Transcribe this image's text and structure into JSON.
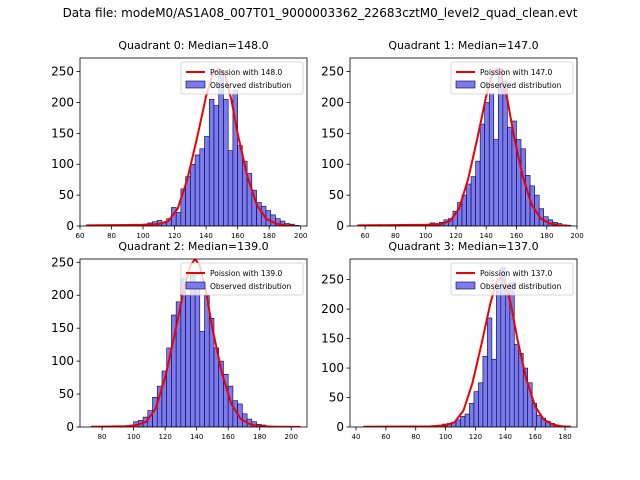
{
  "figure_title": "Data file: modeM0/AS1A08_007T01_9000003362_22683cztM0_level2_quad_clean.evt",
  "colors": {
    "bar_fill": "#7b7bee",
    "bar_edge": "#000040",
    "curve": "#ee0000"
  },
  "chart_data": [
    {
      "type": "bar",
      "title": "Quadrant 0: Median=148.0",
      "xlim": [
        60,
        204
      ],
      "ylim": [
        0,
        272
      ],
      "xticks": [
        60,
        80,
        100,
        120,
        140,
        160,
        180,
        200
      ],
      "yticks": [
        0,
        50,
        100,
        150,
        200,
        250
      ],
      "legend": [
        "Poission with 148.0",
        "Observed distribution"
      ],
      "bin_width": 3,
      "bins": [
        [
          64,
          1
        ],
        [
          88,
          1
        ],
        [
          97,
          1
        ],
        [
          100,
          3
        ],
        [
          103,
          5
        ],
        [
          106,
          7
        ],
        [
          109,
          9
        ],
        [
          112,
          5
        ],
        [
          115,
          12
        ],
        [
          118,
          30
        ],
        [
          121,
          22
        ],
        [
          124,
          60
        ],
        [
          127,
          80
        ],
        [
          130,
          100
        ],
        [
          133,
          115
        ],
        [
          136,
          125
        ],
        [
          139,
          145
        ],
        [
          142,
          205
        ],
        [
          145,
          195
        ],
        [
          148,
          252
        ],
        [
          151,
          205
        ],
        [
          154,
          122
        ],
        [
          157,
          220
        ],
        [
          160,
          130
        ],
        [
          163,
          105
        ],
        [
          166,
          85
        ],
        [
          169,
          58
        ],
        [
          172,
          38
        ],
        [
          175,
          32
        ],
        [
          178,
          25
        ],
        [
          181,
          18
        ],
        [
          184,
          12
        ],
        [
          187,
          8
        ],
        [
          190,
          4
        ],
        [
          193,
          3
        ],
        [
          196,
          1
        ]
      ],
      "curve_x": [
        64,
        100,
        110,
        116,
        122,
        128,
        134,
        140,
        144,
        148,
        152,
        156,
        160,
        166,
        172,
        178,
        184,
        190,
        196
      ],
      "curve_y": [
        1,
        2,
        3,
        8,
        28,
        75,
        140,
        210,
        245,
        255,
        245,
        205,
        150,
        82,
        35,
        12,
        4,
        1,
        0.3
      ]
    },
    {
      "type": "bar",
      "title": "Quadrant 1: Median=147.0",
      "xlim": [
        50,
        200
      ],
      "ylim": [
        0,
        272
      ],
      "xticks": [
        60,
        80,
        100,
        120,
        140,
        160,
        180,
        200
      ],
      "yticks": [
        0,
        50,
        100,
        150,
        200,
        250
      ],
      "legend": [
        "Poission with 147.0",
        "Observed distribution"
      ],
      "bin_width": 3,
      "bins": [
        [
          55,
          1
        ],
        [
          79,
          1
        ],
        [
          93,
          1
        ],
        [
          100,
          2
        ],
        [
          103,
          5
        ],
        [
          106,
          4
        ],
        [
          109,
          6
        ],
        [
          112,
          10
        ],
        [
          115,
          12
        ],
        [
          118,
          24
        ],
        [
          121,
          38
        ],
        [
          124,
          50
        ],
        [
          127,
          68
        ],
        [
          130,
          80
        ],
        [
          133,
          105
        ],
        [
          136,
          165
        ],
        [
          139,
          200
        ],
        [
          142,
          215
        ],
        [
          145,
          140
        ],
        [
          148,
          255
        ],
        [
          151,
          235
        ],
        [
          154,
          160
        ],
        [
          157,
          170
        ],
        [
          160,
          140
        ],
        [
          163,
          125
        ],
        [
          166,
          82
        ],
        [
          169,
          65
        ],
        [
          172,
          50
        ],
        [
          175,
          28
        ],
        [
          178,
          15
        ],
        [
          181,
          10
        ],
        [
          184,
          6
        ],
        [
          187,
          4
        ],
        [
          190,
          2
        ],
        [
          193,
          1
        ]
      ],
      "curve_x": [
        55,
        100,
        110,
        116,
        122,
        128,
        134,
        140,
        144,
        147,
        150,
        154,
        158,
        164,
        170,
        176,
        182,
        188,
        195
      ],
      "curve_y": [
        1,
        2,
        3,
        8,
        28,
        75,
        140,
        210,
        245,
        255,
        245,
        205,
        150,
        82,
        35,
        12,
        4,
        1,
        0.3
      ]
    },
    {
      "type": "bar",
      "title": "Quadrant 2: Median=139.0",
      "xlim": [
        66,
        210
      ],
      "ylim": [
        0,
        255
      ],
      "xticks": [
        80,
        100,
        120,
        140,
        160,
        180,
        200
      ],
      "yticks": [
        0,
        50,
        100,
        150,
        200,
        250
      ],
      "legend": [
        "Poission with 139.0",
        "Observed distribution"
      ],
      "bin_width": 3,
      "bins": [
        [
          100,
          8
        ],
        [
          103,
          10
        ],
        [
          106,
          15
        ],
        [
          109,
          25
        ],
        [
          112,
          45
        ],
        [
          115,
          62
        ],
        [
          118,
          85
        ],
        [
          121,
          120
        ],
        [
          124,
          170
        ],
        [
          127,
          190
        ],
        [
          130,
          225
        ],
        [
          133,
          200
        ],
        [
          136,
          230
        ],
        [
          139,
          215
        ],
        [
          142,
          145
        ],
        [
          145,
          200
        ],
        [
          148,
          165
        ],
        [
          151,
          120
        ],
        [
          154,
          100
        ],
        [
          157,
          80
        ],
        [
          160,
          62
        ],
        [
          163,
          40
        ],
        [
          166,
          35
        ],
        [
          169,
          20
        ],
        [
          172,
          12
        ],
        [
          175,
          8
        ],
        [
          178,
          4
        ],
        [
          181,
          3
        ],
        [
          184,
          1
        ]
      ],
      "curve_x": [
        73,
        95,
        102,
        108,
        114,
        120,
        126,
        132,
        136,
        139,
        142,
        146,
        150,
        156,
        162,
        168,
        174,
        180,
        190,
        206
      ],
      "curve_y": [
        0.3,
        1,
        3,
        8,
        28,
        75,
        140,
        210,
        245,
        255,
        245,
        205,
        150,
        82,
        35,
        12,
        4,
        1,
        0.5,
        0.2
      ]
    },
    {
      "type": "bar",
      "title": "Quadrant 3: Median=137.0",
      "xlim": [
        36,
        188
      ],
      "ylim": [
        0,
        285
      ],
      "xticks": [
        40,
        60,
        80,
        100,
        120,
        140,
        160,
        180
      ],
      "yticks": [
        0,
        50,
        100,
        150,
        200,
        250
      ],
      "legend": [
        "Poission with 137.0",
        "Observed distribution"
      ],
      "bin_width": 3,
      "bins": [
        [
          45,
          1
        ],
        [
          60,
          1
        ],
        [
          98,
          5
        ],
        [
          101,
          6
        ],
        [
          104,
          8
        ],
        [
          107,
          12
        ],
        [
          110,
          18
        ],
        [
          113,
          22
        ],
        [
          116,
          40
        ],
        [
          119,
          60
        ],
        [
          122,
          75
        ],
        [
          125,
          120
        ],
        [
          128,
          185
        ],
        [
          131,
          115
        ],
        [
          134,
          235
        ],
        [
          137,
          270
        ],
        [
          140,
          225
        ],
        [
          143,
          245
        ],
        [
          146,
          140
        ],
        [
          149,
          125
        ],
        [
          152,
          100
        ],
        [
          155,
          75
        ],
        [
          158,
          40
        ],
        [
          161,
          20
        ],
        [
          164,
          15
        ],
        [
          167,
          10
        ],
        [
          170,
          6
        ],
        [
          173,
          3
        ],
        [
          176,
          1
        ],
        [
          179,
          1
        ]
      ],
      "curve_x": [
        45,
        90,
        100,
        106,
        112,
        118,
        124,
        130,
        134,
        137,
        140,
        144,
        148,
        154,
        160,
        166,
        172,
        178,
        184
      ],
      "curve_y": [
        0.5,
        1,
        3,
        8,
        28,
        75,
        140,
        210,
        245,
        255,
        245,
        205,
        150,
        82,
        35,
        12,
        4,
        1,
        0.3
      ]
    }
  ]
}
